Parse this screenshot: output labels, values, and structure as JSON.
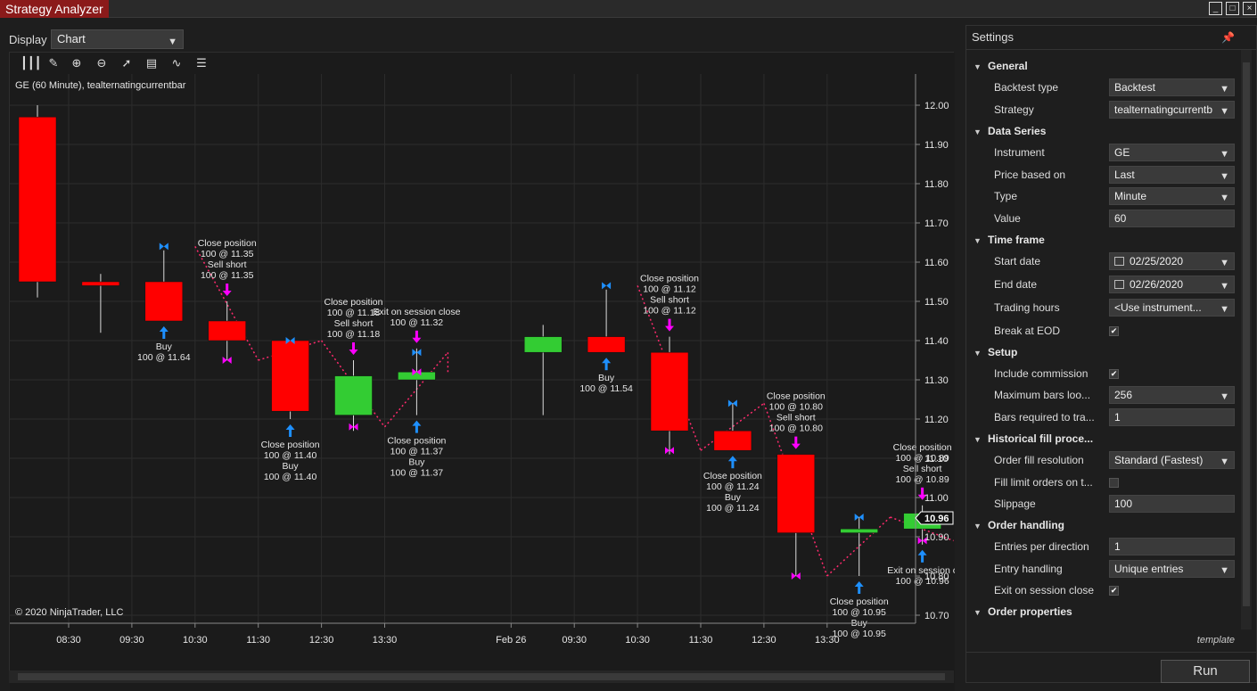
{
  "window": {
    "title": "Strategy Analyzer",
    "controls": [
      "_",
      "□",
      "×"
    ]
  },
  "display": {
    "label": "Display",
    "value": "Chart"
  },
  "chart": {
    "header": "GE (60 Minute), tealternatingcurrentbar",
    "copyright": "© 2020 NinjaTrader, LLC",
    "current_price": "10.96",
    "toolbar_icons": [
      "bar-chart-icon",
      "pencil-icon",
      "zoom-in-icon",
      "zoom-out-icon",
      "cursor-icon",
      "properties-icon",
      "indicator-icon",
      "list-icon"
    ]
  },
  "chart_data": {
    "type": "candlestick",
    "symbol": "GE",
    "ylim": [
      10.65,
      12.05
    ],
    "y_ticks": [
      "12.00",
      "11.90",
      "11.80",
      "11.70",
      "11.60",
      "11.50",
      "11.40",
      "11.30",
      "11.20",
      "11.10",
      "11.00",
      "10.90",
      "10.80",
      "10.70"
    ],
    "x_ticks": [
      "08:30",
      "09:30",
      "10:30",
      "11:30",
      "12:30",
      "13:30",
      "Feb 26",
      "09:30",
      "10:30",
      "11:30",
      "12:30",
      "13:30"
    ],
    "candles": [
      {
        "open": 11.97,
        "high": 12.0,
        "low": 11.51,
        "close": 11.55
      },
      {
        "open": 11.55,
        "high": 11.57,
        "low": 11.42,
        "close": 11.54
      },
      {
        "open": 11.55,
        "high": 11.63,
        "low": 11.45,
        "close": 11.45
      },
      {
        "open": 11.45,
        "high": 11.5,
        "low": 11.35,
        "close": 11.4
      },
      {
        "open": 11.4,
        "high": 11.4,
        "low": 11.2,
        "close": 11.22
      },
      {
        "open": 11.21,
        "high": 11.35,
        "low": 11.17,
        "close": 11.31
      },
      {
        "open": 11.3,
        "high": 11.38,
        "low": 11.21,
        "close": 11.32
      },
      null,
      {
        "open": 11.37,
        "high": 11.44,
        "low": 11.21,
        "close": 11.41
      },
      {
        "open": 11.41,
        "high": 11.53,
        "low": 11.37,
        "close": 11.37
      },
      {
        "open": 11.37,
        "high": 11.41,
        "low": 11.11,
        "close": 11.17
      },
      {
        "open": 11.17,
        "high": 11.24,
        "low": 11.12,
        "close": 11.12
      },
      {
        "open": 11.11,
        "high": 11.11,
        "low": 10.8,
        "close": 10.91
      },
      {
        "open": 10.91,
        "high": 10.95,
        "low": 10.8,
        "close": 10.92
      },
      {
        "open": 10.92,
        "high": 10.98,
        "low": 10.88,
        "close": 10.96
      }
    ],
    "trade_lines": [
      [
        [
          2,
          11.64
        ],
        [
          3,
          11.35
        ]
      ],
      [
        [
          3,
          11.35
        ],
        [
          4,
          11.4
        ]
      ],
      [
        [
          4,
          11.4
        ],
        [
          5,
          11.18
        ]
      ],
      [
        [
          5,
          11.18
        ],
        [
          6,
          11.37
        ]
      ],
      [
        [
          6,
          11.37
        ],
        [
          6,
          11.32
        ]
      ],
      [
        [
          9,
          11.54
        ],
        [
          10,
          11.12
        ]
      ],
      [
        [
          10,
          11.12
        ],
        [
          11,
          11.24
        ]
      ],
      [
        [
          11,
          11.24
        ],
        [
          12,
          10.8
        ]
      ],
      [
        [
          12,
          10.8
        ],
        [
          13,
          10.95
        ]
      ],
      [
        [
          13,
          10.95
        ],
        [
          14,
          10.89
        ]
      ]
    ],
    "markers": [
      {
        "i": 2,
        "price": 11.64,
        "dir": "buy"
      },
      {
        "i": 3,
        "price": 11.35,
        "dir": "sell"
      },
      {
        "i": 4,
        "price": 11.4,
        "dir": "buy"
      },
      {
        "i": 5,
        "price": 11.18,
        "dir": "sell"
      },
      {
        "i": 6,
        "price": 11.37,
        "dir": "buy"
      },
      {
        "i": 6,
        "price": 11.32,
        "dir": "sell"
      },
      {
        "i": 9,
        "price": 11.54,
        "dir": "buy"
      },
      {
        "i": 10,
        "price": 11.12,
        "dir": "sell"
      },
      {
        "i": 11,
        "price": 11.24,
        "dir": "buy"
      },
      {
        "i": 12,
        "price": 10.8,
        "dir": "sell"
      },
      {
        "i": 13,
        "price": 10.95,
        "dir": "buy"
      },
      {
        "i": 14,
        "price": 10.89,
        "dir": "sell"
      }
    ],
    "signals_above": [
      {
        "i": 3,
        "lines": [
          "Close position",
          "100 @ 11.35",
          "Sell short",
          "100 @ 11.35"
        ]
      },
      {
        "i": 5,
        "lines": [
          "Close position",
          "100 @ 11.18",
          "Sell short",
          "100 @ 11.18"
        ]
      },
      {
        "i": 6,
        "lines": [
          "Exit on session close",
          "100 @ 11.32"
        ]
      },
      {
        "i": 10,
        "lines": [
          "Close position",
          "100 @ 11.12",
          "Sell short",
          "100 @ 11.12"
        ]
      },
      {
        "i": 12,
        "lines": [
          "Close position",
          "100 @ 10.80",
          "Sell short",
          "100 @ 10.80"
        ]
      },
      {
        "i": 14,
        "lines": [
          "Close position",
          "100 @ 10.89",
          "Sell short",
          "100 @ 10.89"
        ]
      }
    ],
    "signals_below": [
      {
        "i": 2,
        "lines": [
          "Buy",
          "100 @ 11.64"
        ]
      },
      {
        "i": 4,
        "lines": [
          "Close position",
          "100 @ 11.40",
          "Buy",
          "100 @ 11.40"
        ]
      },
      {
        "i": 6,
        "lines": [
          "Close position",
          "100 @ 11.37",
          "Buy",
          "100 @ 11.37"
        ]
      },
      {
        "i": 9,
        "lines": [
          "Buy",
          "100 @ 11.54"
        ]
      },
      {
        "i": 11,
        "lines": [
          "Close position",
          "100 @ 11.24",
          "Buy",
          "100 @ 11.24"
        ]
      },
      {
        "i": 13,
        "lines": [
          "Close position",
          "100 @ 10.95",
          "Buy",
          "100 @ 10.95"
        ]
      },
      {
        "i": 14,
        "lines": [
          "Exit on session c",
          "100 @ 10.96"
        ]
      }
    ],
    "colors": {
      "up": "#33cc33",
      "down": "#ff0000",
      "buy": "#1e90ff",
      "sell": "#ff00ff",
      "trade_line": "#ff2a6d"
    }
  },
  "settings": {
    "title": "Settings",
    "template": "template",
    "run": "Run",
    "sections": [
      {
        "name": "General",
        "props": [
          {
            "label": "Backtest type",
            "value": "Backtest",
            "kind": "dropdown"
          },
          {
            "label": "Strategy",
            "value": "tealternatingcurrentb",
            "kind": "dropdown"
          }
        ]
      },
      {
        "name": "Data Series",
        "props": [
          {
            "label": "Instrument",
            "value": "GE",
            "kind": "dropdown"
          },
          {
            "label": "Price based on",
            "value": "Last",
            "kind": "dropdown"
          },
          {
            "label": "Type",
            "value": "Minute",
            "kind": "dropdown"
          },
          {
            "label": "Value",
            "value": "60",
            "kind": "text"
          }
        ]
      },
      {
        "name": "Time frame",
        "props": [
          {
            "label": "Start date",
            "value": "02/25/2020",
            "kind": "date"
          },
          {
            "label": "End date",
            "value": "02/26/2020",
            "kind": "date"
          },
          {
            "label": "Trading hours",
            "value": "<Use instrument...",
            "kind": "dropdown"
          },
          {
            "label": "Break at EOD",
            "value": "✔",
            "kind": "check"
          }
        ]
      },
      {
        "name": "Setup",
        "props": [
          {
            "label": "Include commission",
            "value": "✔",
            "kind": "check"
          },
          {
            "label": "Maximum bars loo...",
            "value": "256",
            "kind": "dropdown"
          },
          {
            "label": "Bars required to tra...",
            "value": "1",
            "kind": "text"
          }
        ]
      },
      {
        "name": "Historical fill proce...",
        "props": [
          {
            "label": "Order fill resolution",
            "value": "Standard (Fastest)",
            "kind": "dropdown"
          },
          {
            "label": "Fill limit orders on t...",
            "value": "",
            "kind": "check"
          },
          {
            "label": "Slippage",
            "value": "100",
            "kind": "text"
          }
        ]
      },
      {
        "name": "Order handling",
        "props": [
          {
            "label": "Entries per direction",
            "value": "1",
            "kind": "text"
          },
          {
            "label": "Entry handling",
            "value": "Unique entries",
            "kind": "dropdown"
          },
          {
            "label": "Exit on session close",
            "value": "✔",
            "kind": "check"
          }
        ]
      },
      {
        "name": "Order properties",
        "props": []
      }
    ]
  }
}
